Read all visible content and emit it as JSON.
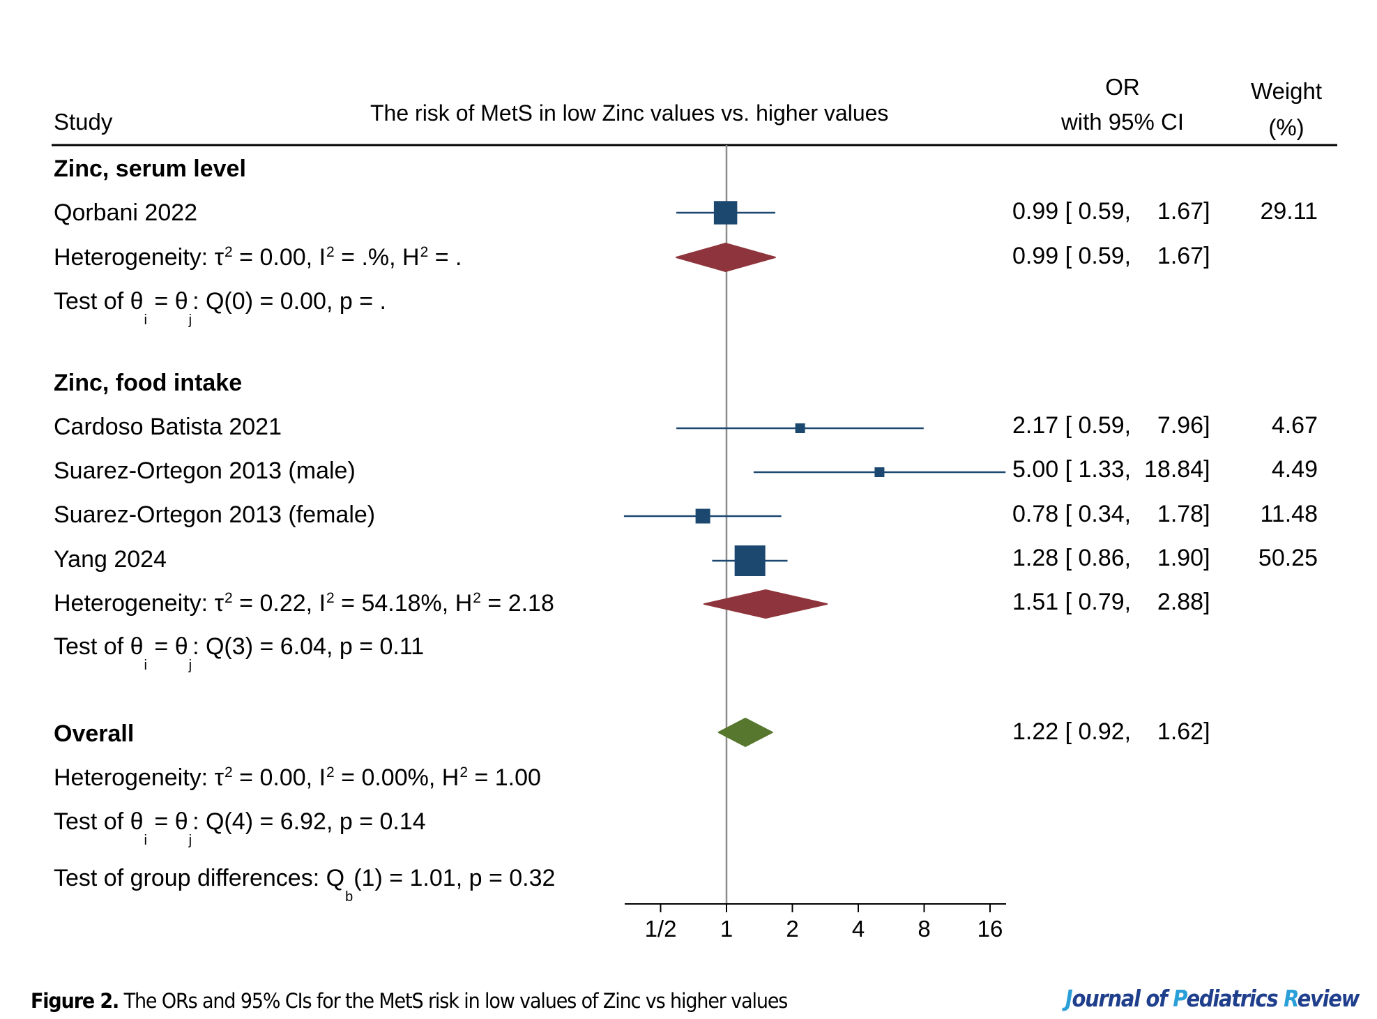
{
  "chart_data": {
    "type": "forest",
    "title": "The risk of MetS in low Zinc values vs. higher values",
    "columns": {
      "study": "Study",
      "or_line1": "OR",
      "or_line2": "with 95% CI",
      "weight_line1": "Weight",
      "weight_line2": "(%)"
    },
    "x_axis": {
      "scale": "log2",
      "range": [
        0.42,
        17.5
      ],
      "ticks": [
        0.5,
        1,
        2,
        4,
        8,
        16
      ],
      "tick_labels": [
        "1/2",
        "1",
        "2",
        "4",
        "8",
        "16"
      ],
      "reference_line": 1
    },
    "colors": {
      "study_marker": "#1c4870",
      "subgroup_diamond": "#8e343c",
      "overall_diamond": "#58772e",
      "reference_line": "#8c8c8c",
      "journal_dark": "#1f3f8c",
      "journal_light": "#2a9fd8"
    },
    "groups": [
      {
        "name": "Zinc, serum level",
        "studies": [
          {
            "label": "Qorbani 2022",
            "or": 0.99,
            "lo": 0.59,
            "hi": 1.67,
            "weight": 29.11,
            "ci_text": "0.99 [ 0.59,    1.67]",
            "weight_text": "29.11"
          }
        ],
        "pooled": {
          "or": 0.99,
          "lo": 0.59,
          "hi": 1.67,
          "ci_text": "0.99 [ 0.59,    1.67]"
        },
        "heterogeneity": {
          "tau2": "0.00",
          "i2": ".%",
          "h2": "."
        },
        "test": {
          "q_df": "0",
          "q": "0.00",
          "p": "."
        }
      },
      {
        "name": "Zinc, food intake",
        "studies": [
          {
            "label": "Cardoso Batista 2021",
            "or": 2.17,
            "lo": 0.59,
            "hi": 7.96,
            "weight": 4.67,
            "ci_text": "2.17 [ 0.59,    7.96]",
            "weight_text": "4.67"
          },
          {
            "label": "Suarez-Ortegon 2013 (male)",
            "or": 5.0,
            "lo": 1.33,
            "hi": 18.84,
            "weight": 4.49,
            "ci_text": "5.00 [ 1.33,  18.84]",
            "weight_text": "4.49"
          },
          {
            "label": "Suarez-Ortegon 2013 (female)",
            "or": 0.78,
            "lo": 0.34,
            "hi": 1.78,
            "weight": 11.48,
            "ci_text": "0.78 [ 0.34,    1.78]",
            "weight_text": "11.48"
          },
          {
            "label": "Yang 2024",
            "or": 1.28,
            "lo": 0.86,
            "hi": 1.9,
            "weight": 50.25,
            "ci_text": "1.28 [ 0.86,    1.90]",
            "weight_text": "50.25"
          }
        ],
        "pooled": {
          "or": 1.51,
          "lo": 0.79,
          "hi": 2.88,
          "ci_text": "1.51 [ 0.79,    2.88]"
        },
        "heterogeneity": {
          "tau2": "0.22",
          "i2": "54.18%",
          "h2": "2.18"
        },
        "test": {
          "q_df": "3",
          "q": "6.04",
          "p": "0.11"
        }
      }
    ],
    "overall": {
      "label": "Overall",
      "or": 1.22,
      "lo": 0.92,
      "hi": 1.62,
      "ci_text": "1.22 [ 0.92,    1.62]",
      "heterogeneity": {
        "tau2": "0.00",
        "i2": "0.00%",
        "h2": "1.00"
      },
      "test": {
        "q_df": "4",
        "q": "6.92",
        "p": "0.14"
      },
      "group_diff": {
        "df": "1",
        "q": "1.01",
        "p": "0.32"
      }
    }
  },
  "labels": {
    "heterogeneity_prefix": "Heterogeneity: ",
    "tau": "τ",
    "sq": "2",
    "i": "I",
    "h": "H",
    "test_prefix": "Test of θ",
    "theta": "θ",
    "sub_i": "i",
    "sub_j": "j",
    "group_diff_prefix": "Test of group differences: Q",
    "sub_b": "b"
  },
  "caption": {
    "figure_label": "Figure 2.",
    "text": " The ORs and 95% CIs for the MetS risk in low values of Zinc vs higher values"
  },
  "journal": {
    "parts": [
      {
        "text": "J",
        "tone": "light"
      },
      {
        "text": "ournal of ",
        "tone": "dark"
      },
      {
        "text": "P",
        "tone": "light"
      },
      {
        "text": "ediatrics ",
        "tone": "dark"
      },
      {
        "text": "R",
        "tone": "light"
      },
      {
        "text": "eview",
        "tone": "dark"
      }
    ]
  }
}
